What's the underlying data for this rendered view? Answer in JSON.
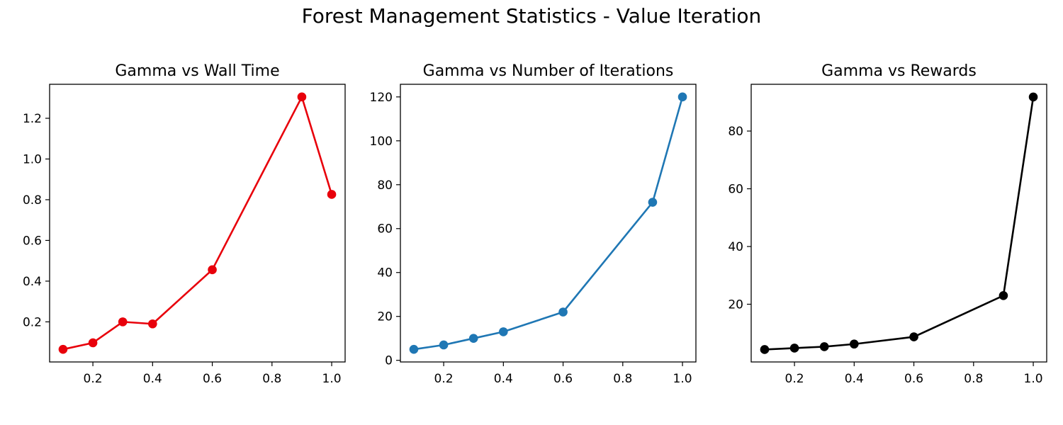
{
  "figure": {
    "title": "Forest Management Statistics - Value Iteration"
  },
  "chart_data": [
    {
      "type": "line",
      "title": "Gamma vs Wall Time",
      "xlabel": "",
      "ylabel": "",
      "color": "#e8000b",
      "x": [
        0.1,
        0.2,
        0.3,
        0.4,
        0.6,
        0.9,
        1.0
      ],
      "y": [
        0.065,
        0.097,
        0.2,
        0.19,
        0.456,
        1.305,
        0.826
      ],
      "xlim": [
        0.055,
        1.045
      ],
      "ylim": [
        0.003,
        1.367
      ],
      "xticks": [
        0.2,
        0.4,
        0.6,
        0.8,
        1.0
      ],
      "xtick_labels": [
        "0.2",
        "0.4",
        "0.6",
        "0.8",
        "1.0"
      ],
      "yticks": [
        0.2,
        0.4,
        0.6,
        0.8,
        1.0,
        1.2
      ],
      "ytick_labels": [
        "0.2",
        "0.4",
        "0.6",
        "0.8",
        "1.0",
        "1.2"
      ],
      "grid": false
    },
    {
      "type": "line",
      "title": "Gamma vs Number of Iterations",
      "xlabel": "",
      "ylabel": "",
      "color": "#1f77b4",
      "x": [
        0.1,
        0.2,
        0.3,
        0.4,
        0.6,
        0.9,
        1.0
      ],
      "y": [
        5,
        7,
        10,
        13,
        22,
        72,
        120
      ],
      "xlim": [
        0.055,
        1.045
      ],
      "ylim": [
        -0.75,
        125.75
      ],
      "xticks": [
        0.2,
        0.4,
        0.6,
        0.8,
        1.0
      ],
      "xtick_labels": [
        "0.2",
        "0.4",
        "0.6",
        "0.8",
        "1.0"
      ],
      "yticks": [
        0,
        20,
        40,
        60,
        80,
        100,
        120
      ],
      "ytick_labels": [
        "0",
        "20",
        "40",
        "60",
        "80",
        "100",
        "120"
      ],
      "grid": false
    },
    {
      "type": "line",
      "title": "Gamma vs Rewards",
      "xlabel": "",
      "ylabel": "",
      "color": "#000000",
      "x": [
        0.1,
        0.2,
        0.3,
        0.4,
        0.6,
        0.9,
        1.0
      ],
      "y": [
        4.3,
        4.8,
        5.3,
        6.2,
        8.7,
        23.0,
        91.8
      ],
      "xlim": [
        0.055,
        1.045
      ],
      "ylim": [
        0.0,
        96.2
      ],
      "xticks": [
        0.2,
        0.4,
        0.6,
        0.8,
        1.0
      ],
      "xtick_labels": [
        "0.2",
        "0.4",
        "0.6",
        "0.8",
        "1.0"
      ],
      "yticks": [
        20,
        40,
        60,
        80
      ],
      "ytick_labels": [
        "20",
        "40",
        "60",
        "80"
      ],
      "grid": false
    }
  ]
}
